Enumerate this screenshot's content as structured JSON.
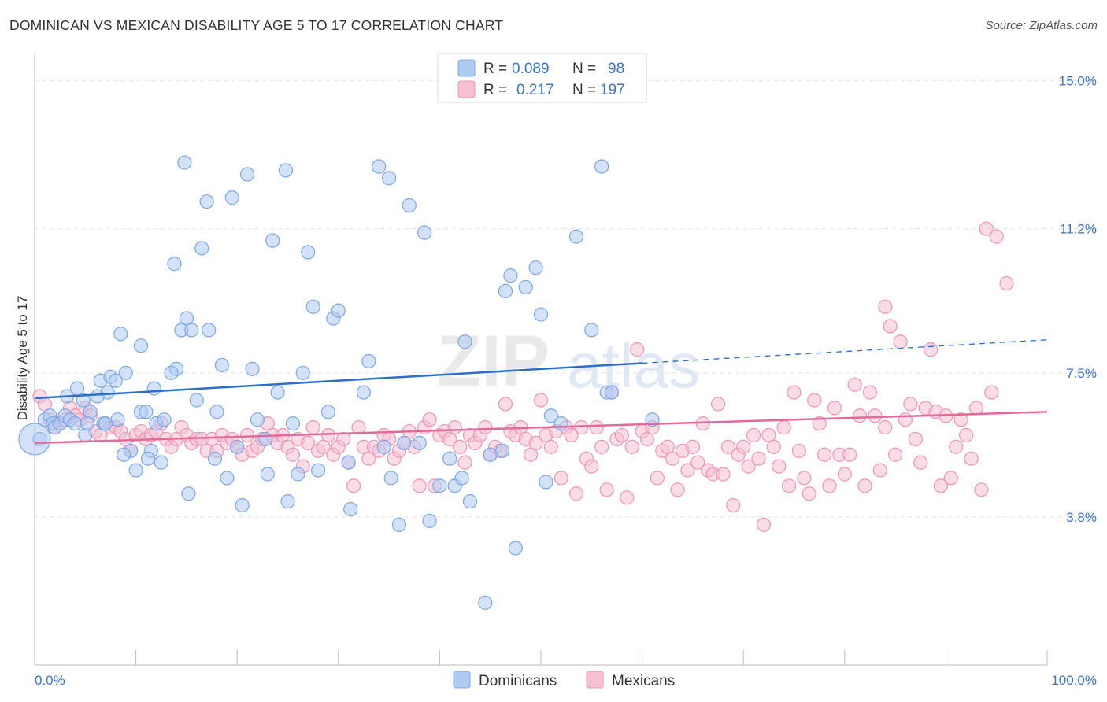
{
  "title": "DOMINICAN VS MEXICAN DISABILITY AGE 5 TO 17 CORRELATION CHART",
  "source": "Source: ZipAtlas.com",
  "watermark": {
    "zip": "ZIP",
    "atlas": "atlas"
  },
  "legend": {
    "dominicans": {
      "r_label": "R =",
      "r_value": "0.089",
      "n_label": "N =",
      "n_value": "98"
    },
    "mexicans": {
      "r_label": "R =",
      "r_value": "0.217",
      "n_label": "N =",
      "n_value": "197"
    }
  },
  "bottom_legend": {
    "dominicans": "Dominicans",
    "mexicans": "Mexicans"
  },
  "colors": {
    "dominicans_fill": "#aecbf2",
    "dominicans_stroke": "#7aa8e6",
    "dominicans_line": "#2b6fcb",
    "mexicans_fill": "#f6bfd2",
    "mexicans_stroke": "#ee94b4",
    "mexicans_line": "#e2699a",
    "tick_label": "#3a73c9"
  },
  "chart_data": {
    "type": "scatter",
    "title": "DOMINICAN VS MEXICAN DISABILITY AGE 5 TO 17 CORRELATION CHART",
    "xlabel": "",
    "ylabel": "Disability Age 5 to 17",
    "xlim": [
      0,
      100
    ],
    "ylim": [
      0,
      15.7
    ],
    "y_ticks": [
      {
        "value": 3.8,
        "label": "3.8%"
      },
      {
        "value": 7.5,
        "label": "7.5%"
      },
      {
        "value": 11.2,
        "label": "11.2%"
      },
      {
        "value": 15.0,
        "label": "15.0%"
      }
    ],
    "x_tick_labels": {
      "left": "0.0%",
      "right": "100.0%"
    },
    "x_minor_ticks": [
      0,
      10,
      20,
      30,
      40,
      50,
      60,
      70,
      80,
      90,
      100
    ],
    "grid": true,
    "series": [
      {
        "name": "Dominicans",
        "trend": {
          "x0": 0,
          "y0": 6.85,
          "x1": 60,
          "y1": 7.75,
          "dash_to_x": 100,
          "dash_to_y": 8.35
        },
        "points": [
          [
            0.5,
            5.8
          ],
          [
            1.0,
            6.3
          ],
          [
            1.5,
            6.4
          ],
          [
            1.8,
            6.2
          ],
          [
            2.0,
            6.1
          ],
          [
            2.5,
            6.2
          ],
          [
            3.0,
            6.4
          ],
          [
            3.5,
            6.3
          ],
          [
            4.0,
            6.2
          ],
          [
            3.2,
            6.9
          ],
          [
            4.2,
            7.1
          ],
          [
            4.8,
            6.8
          ],
          [
            5.0,
            5.9
          ],
          [
            5.5,
            6.5
          ],
          [
            5.2,
            6.2
          ],
          [
            6.2,
            6.9
          ],
          [
            6.5,
            7.3
          ],
          [
            7.2,
            7.0
          ],
          [
            7.5,
            7.4
          ],
          [
            6.8,
            6.2
          ],
          [
            8.2,
            6.3
          ],
          [
            7.0,
            6.2
          ],
          [
            8.5,
            8.5
          ],
          [
            8.0,
            7.3
          ],
          [
            9.0,
            7.5
          ],
          [
            9.5,
            5.5
          ],
          [
            8.8,
            5.4
          ],
          [
            10.5,
            8.2
          ],
          [
            10.5,
            6.5
          ],
          [
            10.0,
            5.0
          ],
          [
            11.0,
            6.5
          ],
          [
            11.5,
            5.5
          ],
          [
            12.0,
            6.2
          ],
          [
            11.8,
            7.1
          ],
          [
            12.8,
            6.3
          ],
          [
            11.2,
            5.3
          ],
          [
            12.5,
            5.2
          ],
          [
            14.0,
            7.6
          ],
          [
            13.5,
            7.5
          ],
          [
            13.8,
            10.3
          ],
          [
            14.5,
            8.6
          ],
          [
            15.0,
            8.9
          ],
          [
            15.2,
            4.4
          ],
          [
            14.8,
            12.9
          ],
          [
            15.5,
            8.6
          ],
          [
            16.0,
            6.8
          ],
          [
            16.5,
            10.7
          ],
          [
            17.0,
            11.9
          ],
          [
            17.2,
            8.6
          ],
          [
            18.0,
            6.5
          ],
          [
            17.8,
            5.3
          ],
          [
            18.5,
            7.7
          ],
          [
            19.0,
            4.8
          ],
          [
            19.5,
            12.0
          ],
          [
            20.5,
            4.1
          ],
          [
            20.0,
            5.6
          ],
          [
            21.0,
            12.6
          ],
          [
            21.5,
            7.6
          ],
          [
            22.0,
            6.3
          ],
          [
            22.8,
            5.8
          ],
          [
            23.0,
            4.9
          ],
          [
            23.5,
            10.9
          ],
          [
            24.0,
            7.0
          ],
          [
            25.5,
            6.2
          ],
          [
            24.8,
            12.7
          ],
          [
            25.0,
            4.2
          ],
          [
            26.0,
            4.9
          ],
          [
            27.0,
            10.6
          ],
          [
            26.5,
            7.5
          ],
          [
            28.0,
            5.0
          ],
          [
            27.5,
            9.2
          ],
          [
            29.0,
            6.5
          ],
          [
            29.5,
            8.9
          ],
          [
            30.0,
            9.1
          ],
          [
            31.0,
            5.2
          ],
          [
            31.2,
            4.0
          ],
          [
            32.5,
            7.0
          ],
          [
            33.0,
            7.8
          ],
          [
            34.0,
            12.8
          ],
          [
            35.0,
            12.5
          ],
          [
            34.5,
            5.6
          ],
          [
            35.2,
            4.8
          ],
          [
            36.0,
            3.6
          ],
          [
            36.5,
            5.7
          ],
          [
            37.0,
            11.8
          ],
          [
            38.5,
            11.1
          ],
          [
            38.0,
            5.7
          ],
          [
            39.0,
            3.7
          ],
          [
            40.0,
            4.6
          ],
          [
            41.5,
            4.6
          ],
          [
            41.0,
            5.3
          ],
          [
            42.5,
            8.3
          ],
          [
            42.2,
            4.8
          ],
          [
            43.0,
            4.2
          ],
          [
            44.5,
            1.6
          ],
          [
            45.0,
            5.4
          ],
          [
            46.5,
            9.6
          ],
          [
            46.2,
            5.5
          ],
          [
            47.0,
            10.0
          ],
          [
            47.5,
            3.0
          ],
          [
            48.5,
            9.7
          ],
          [
            49.5,
            10.2
          ],
          [
            50.0,
            9.0
          ],
          [
            50.5,
            4.7
          ],
          [
            51.0,
            6.4
          ],
          [
            52.0,
            6.2
          ],
          [
            53.5,
            11.0
          ],
          [
            55.0,
            8.6
          ],
          [
            56.0,
            12.8
          ],
          [
            56.5,
            7.0
          ],
          [
            57.0,
            7.0
          ],
          [
            61.0,
            6.3
          ]
        ],
        "big_point": [
          0.0,
          5.8
        ]
      },
      {
        "name": "Mexicans",
        "trend": {
          "x0": 0,
          "y0": 5.7,
          "x1": 100,
          "y1": 6.5
        },
        "points": [
          [
            0.5,
            6.9
          ],
          [
            1.0,
            6.7
          ],
          [
            1.5,
            6.3
          ],
          [
            2.0,
            6.1
          ],
          [
            2.5,
            6.2
          ],
          [
            3.0,
            6.3
          ],
          [
            3.5,
            6.6
          ],
          [
            4.0,
            6.4
          ],
          [
            4.5,
            6.3
          ],
          [
            5.0,
            6.6
          ],
          [
            5.5,
            6.4
          ],
          [
            6.0,
            6.0
          ],
          [
            6.5,
            5.9
          ],
          [
            7.0,
            6.2
          ],
          [
            7.5,
            6.1
          ],
          [
            8.0,
            6.1
          ],
          [
            8.5,
            6.0
          ],
          [
            9.0,
            5.8
          ],
          [
            9.5,
            5.5
          ],
          [
            10.0,
            5.9
          ],
          [
            10.5,
            6.0
          ],
          [
            11.0,
            5.8
          ],
          [
            11.5,
            5.9
          ],
          [
            12.0,
            6.0
          ],
          [
            12.5,
            6.2
          ],
          [
            13.0,
            5.8
          ],
          [
            13.5,
            5.6
          ],
          [
            14.0,
            5.8
          ],
          [
            14.5,
            6.1
          ],
          [
            15.0,
            5.9
          ],
          [
            15.5,
            5.7
          ],
          [
            16.0,
            5.8
          ],
          [
            16.5,
            5.8
          ],
          [
            17.0,
            5.5
          ],
          [
            17.5,
            5.8
          ],
          [
            18.0,
            5.5
          ],
          [
            18.5,
            5.9
          ],
          [
            19.0,
            5.7
          ],
          [
            19.5,
            5.8
          ],
          [
            20.0,
            5.6
          ],
          [
            20.5,
            5.4
          ],
          [
            21.0,
            5.9
          ],
          [
            21.5,
            5.5
          ],
          [
            22.0,
            5.6
          ],
          [
            22.5,
            5.8
          ],
          [
            23.0,
            6.2
          ],
          [
            23.5,
            5.9
          ],
          [
            24.0,
            5.7
          ],
          [
            24.5,
            5.9
          ],
          [
            25.0,
            5.6
          ],
          [
            25.5,
            5.4
          ],
          [
            26.0,
            5.8
          ],
          [
            26.5,
            5.1
          ],
          [
            27.0,
            5.7
          ],
          [
            27.5,
            6.1
          ],
          [
            28.0,
            5.5
          ],
          [
            28.5,
            5.6
          ],
          [
            29.0,
            5.9
          ],
          [
            29.5,
            5.4
          ],
          [
            30.0,
            5.6
          ],
          [
            30.5,
            5.8
          ],
          [
            31.0,
            5.2
          ],
          [
            31.5,
            4.6
          ],
          [
            32.0,
            6.1
          ],
          [
            32.5,
            5.6
          ],
          [
            33.0,
            5.3
          ],
          [
            33.5,
            5.6
          ],
          [
            34.0,
            5.5
          ],
          [
            34.5,
            5.9
          ],
          [
            35.0,
            5.8
          ],
          [
            35.5,
            5.3
          ],
          [
            36.0,
            5.5
          ],
          [
            36.5,
            5.7
          ],
          [
            37.0,
            6.0
          ],
          [
            37.5,
            5.6
          ],
          [
            38.0,
            4.6
          ],
          [
            38.5,
            6.1
          ],
          [
            39.0,
            6.3
          ],
          [
            39.5,
            4.6
          ],
          [
            40.0,
            5.9
          ],
          [
            40.5,
            6.0
          ],
          [
            41.0,
            5.8
          ],
          [
            41.5,
            6.1
          ],
          [
            42.0,
            5.6
          ],
          [
            42.5,
            5.2
          ],
          [
            43.0,
            5.9
          ],
          [
            43.5,
            5.7
          ],
          [
            44.0,
            5.9
          ],
          [
            44.5,
            6.1
          ],
          [
            45.0,
            5.4
          ],
          [
            45.5,
            5.6
          ],
          [
            46.0,
            5.5
          ],
          [
            46.5,
            6.7
          ],
          [
            47.0,
            6.0
          ],
          [
            47.5,
            5.9
          ],
          [
            48.0,
            6.1
          ],
          [
            48.5,
            5.8
          ],
          [
            49.0,
            5.4
          ],
          [
            49.5,
            5.7
          ],
          [
            50.0,
            6.8
          ],
          [
            50.5,
            5.9
          ],
          [
            51.0,
            5.6
          ],
          [
            51.5,
            6.0
          ],
          [
            52.0,
            4.8
          ],
          [
            52.5,
            6.1
          ],
          [
            53.0,
            5.9
          ],
          [
            53.5,
            4.4
          ],
          [
            54.0,
            6.1
          ],
          [
            54.5,
            5.3
          ],
          [
            55.0,
            5.1
          ],
          [
            55.5,
            6.1
          ],
          [
            56.0,
            5.6
          ],
          [
            56.5,
            4.5
          ],
          [
            57.0,
            7.0
          ],
          [
            57.5,
            5.8
          ],
          [
            58.0,
            5.9
          ],
          [
            58.5,
            4.3
          ],
          [
            59.0,
            5.6
          ],
          [
            59.5,
            8.1
          ],
          [
            60.0,
            6.0
          ],
          [
            60.5,
            5.8
          ],
          [
            61.0,
            6.1
          ],
          [
            61.5,
            4.8
          ],
          [
            62.0,
            5.5
          ],
          [
            62.5,
            5.6
          ],
          [
            63.0,
            5.3
          ],
          [
            63.5,
            4.5
          ],
          [
            64.0,
            5.5
          ],
          [
            64.5,
            5.0
          ],
          [
            65.0,
            5.6
          ],
          [
            65.5,
            5.2
          ],
          [
            66.0,
            6.2
          ],
          [
            66.5,
            5.0
          ],
          [
            67.0,
            4.9
          ],
          [
            67.5,
            6.7
          ],
          [
            68.0,
            4.9
          ],
          [
            68.5,
            5.6
          ],
          [
            69.0,
            4.1
          ],
          [
            69.5,
            5.4
          ],
          [
            70.0,
            5.6
          ],
          [
            70.5,
            5.1
          ],
          [
            71.0,
            5.9
          ],
          [
            71.5,
            5.3
          ],
          [
            72.0,
            3.6
          ],
          [
            72.5,
            5.9
          ],
          [
            73.0,
            5.6
          ],
          [
            73.5,
            5.1
          ],
          [
            74.0,
            6.1
          ],
          [
            74.5,
            4.6
          ],
          [
            75.0,
            7.0
          ],
          [
            75.5,
            5.5
          ],
          [
            76.0,
            4.8
          ],
          [
            76.5,
            4.4
          ],
          [
            77.0,
            6.8
          ],
          [
            77.5,
            6.2
          ],
          [
            78.0,
            5.4
          ],
          [
            78.5,
            4.6
          ],
          [
            79.0,
            6.6
          ],
          [
            79.5,
            5.4
          ],
          [
            80.0,
            4.9
          ],
          [
            80.5,
            5.4
          ],
          [
            81.0,
            7.2
          ],
          [
            81.5,
            6.4
          ],
          [
            82.0,
            4.6
          ],
          [
            82.5,
            7.0
          ],
          [
            83.0,
            6.4
          ],
          [
            83.5,
            5.0
          ],
          [
            84.0,
            6.1
          ],
          [
            84.5,
            8.7
          ],
          [
            85.0,
            5.4
          ],
          [
            85.5,
            8.3
          ],
          [
            86.0,
            6.3
          ],
          [
            86.5,
            6.7
          ],
          [
            87.0,
            5.8
          ],
          [
            87.5,
            5.2
          ],
          [
            88.0,
            6.6
          ],
          [
            88.5,
            8.1
          ],
          [
            89.0,
            6.5
          ],
          [
            89.5,
            4.6
          ],
          [
            90.0,
            6.4
          ],
          [
            90.5,
            4.8
          ],
          [
            91.0,
            5.6
          ],
          [
            91.5,
            6.3
          ],
          [
            92.0,
            5.9
          ],
          [
            92.5,
            5.3
          ],
          [
            93.0,
            6.6
          ],
          [
            93.5,
            4.5
          ],
          [
            94.0,
            11.2
          ],
          [
            94.5,
            7.0
          ],
          [
            95.0,
            11.0
          ],
          [
            96.0,
            9.8
          ],
          [
            84.0,
            9.2
          ]
        ]
      }
    ]
  }
}
